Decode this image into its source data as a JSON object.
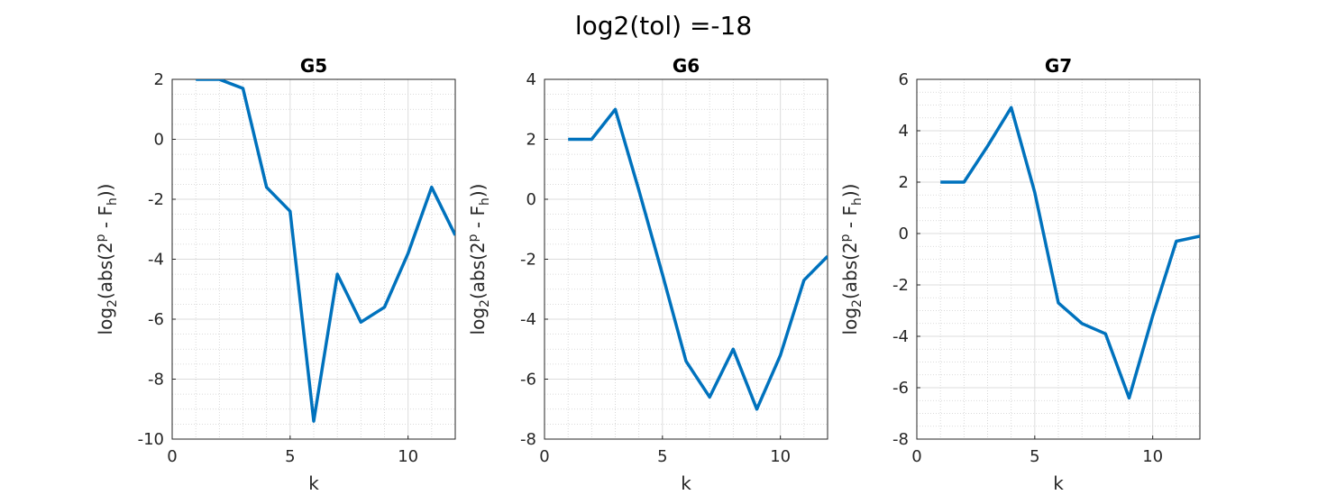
{
  "figure": {
    "title": "log2(tol) =-18"
  },
  "chart_data": [
    {
      "type": "line",
      "title": "G5",
      "xlabel": "k",
      "ylabel": {
        "pre": "log",
        "sub": "2",
        "mid": "(abs(2",
        "sup": "p",
        "mid2": " - F",
        "sub2": "h",
        "post": "))"
      },
      "xlim": [
        0,
        12
      ],
      "ylim": [
        -10,
        2
      ],
      "xticks": [
        0,
        5,
        10
      ],
      "yticks": [
        2,
        0,
        -2,
        -4,
        -6,
        -8,
        -10
      ],
      "grid": true,
      "color": "#0072BD",
      "x": [
        1,
        2,
        3,
        4,
        5,
        6,
        7,
        8,
        9,
        10,
        11,
        12
      ],
      "y": [
        2.0,
        2.0,
        1.7,
        -1.6,
        -2.4,
        -9.4,
        -4.5,
        -6.1,
        -5.6,
        -3.8,
        -1.6,
        -3.2
      ]
    },
    {
      "type": "line",
      "title": "G6",
      "xlabel": "k",
      "ylabel": {
        "pre": "log",
        "sub": "2",
        "mid": "(abs(2",
        "sup": "p",
        "mid2": " - F",
        "sub2": "h",
        "post": "))"
      },
      "xlim": [
        0,
        12
      ],
      "ylim": [
        -8,
        4
      ],
      "xticks": [
        0,
        5,
        10
      ],
      "yticks": [
        4,
        2,
        0,
        -2,
        -4,
        -6,
        -8
      ],
      "grid": true,
      "color": "#0072BD",
      "x": [
        1,
        2,
        3,
        4,
        5,
        6,
        7,
        8,
        9,
        10,
        11,
        12
      ],
      "y": [
        2.0,
        2.0,
        3.0,
        0.3,
        -2.5,
        -5.4,
        -6.6,
        -5.0,
        -7.0,
        -5.2,
        -2.7,
        -1.9
      ]
    },
    {
      "type": "line",
      "title": "G7",
      "xlabel": "k",
      "ylabel": {
        "pre": "log",
        "sub": "2",
        "mid": "(abs(2",
        "sup": "p",
        "mid2": " - F",
        "sub2": "h",
        "post": "))"
      },
      "xlim": [
        0,
        12
      ],
      "ylim": [
        -8,
        6
      ],
      "xticks": [
        0,
        5,
        10
      ],
      "yticks": [
        6,
        4,
        2,
        0,
        -2,
        -4,
        -6,
        -8
      ],
      "grid": true,
      "color": "#0072BD",
      "x": [
        1,
        2,
        3,
        4,
        5,
        6,
        7,
        8,
        9,
        10,
        11,
        12
      ],
      "y": [
        2.0,
        2.0,
        3.4,
        4.9,
        1.6,
        -2.7,
        -3.5,
        -3.9,
        -6.4,
        -3.2,
        -0.3,
        -0.1
      ]
    }
  ]
}
